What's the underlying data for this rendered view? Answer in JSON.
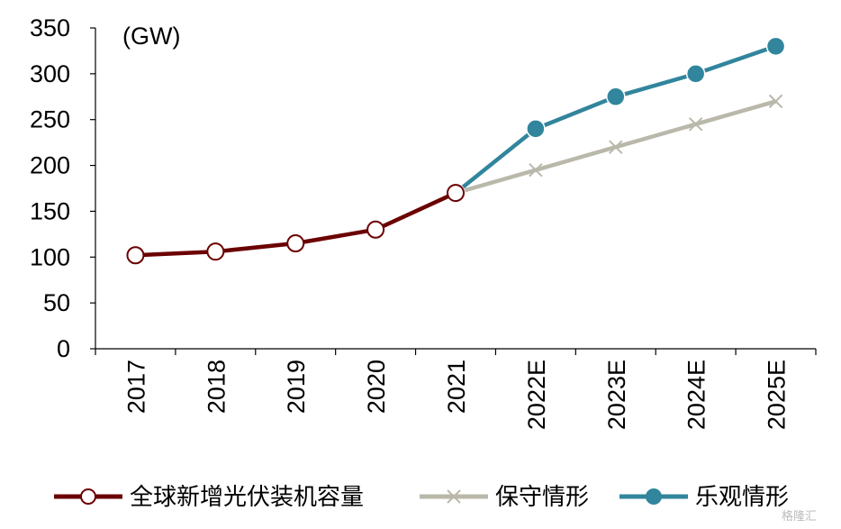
{
  "chart_data": {
    "type": "line",
    "unit_label": "(GW)",
    "categories": [
      "2017",
      "2018",
      "2019",
      "2020",
      "2021",
      "2022E",
      "2023E",
      "2024E",
      "2025E"
    ],
    "ylim": [
      0,
      350
    ],
    "yticks": [
      "0",
      "50",
      "100",
      "150",
      "200",
      "250",
      "300",
      "350"
    ],
    "grid": false,
    "legend_position": "bottom",
    "series": [
      {
        "name": "全球新增光伏装机容量",
        "color": "#6b0000",
        "marker": "open-circle",
        "values": [
          102,
          106,
          115,
          130,
          170,
          null,
          null,
          null,
          null
        ]
      },
      {
        "name": "保守情形",
        "color": "#b9b8aa",
        "marker": "x",
        "values": [
          null,
          null,
          null,
          null,
          170,
          195,
          220,
          245,
          270
        ]
      },
      {
        "name": "乐观情形",
        "color": "#31859c",
        "marker": "filled-circle",
        "values": [
          null,
          null,
          null,
          null,
          170,
          240,
          275,
          300,
          330
        ]
      }
    ]
  },
  "watermark": "格隆汇"
}
